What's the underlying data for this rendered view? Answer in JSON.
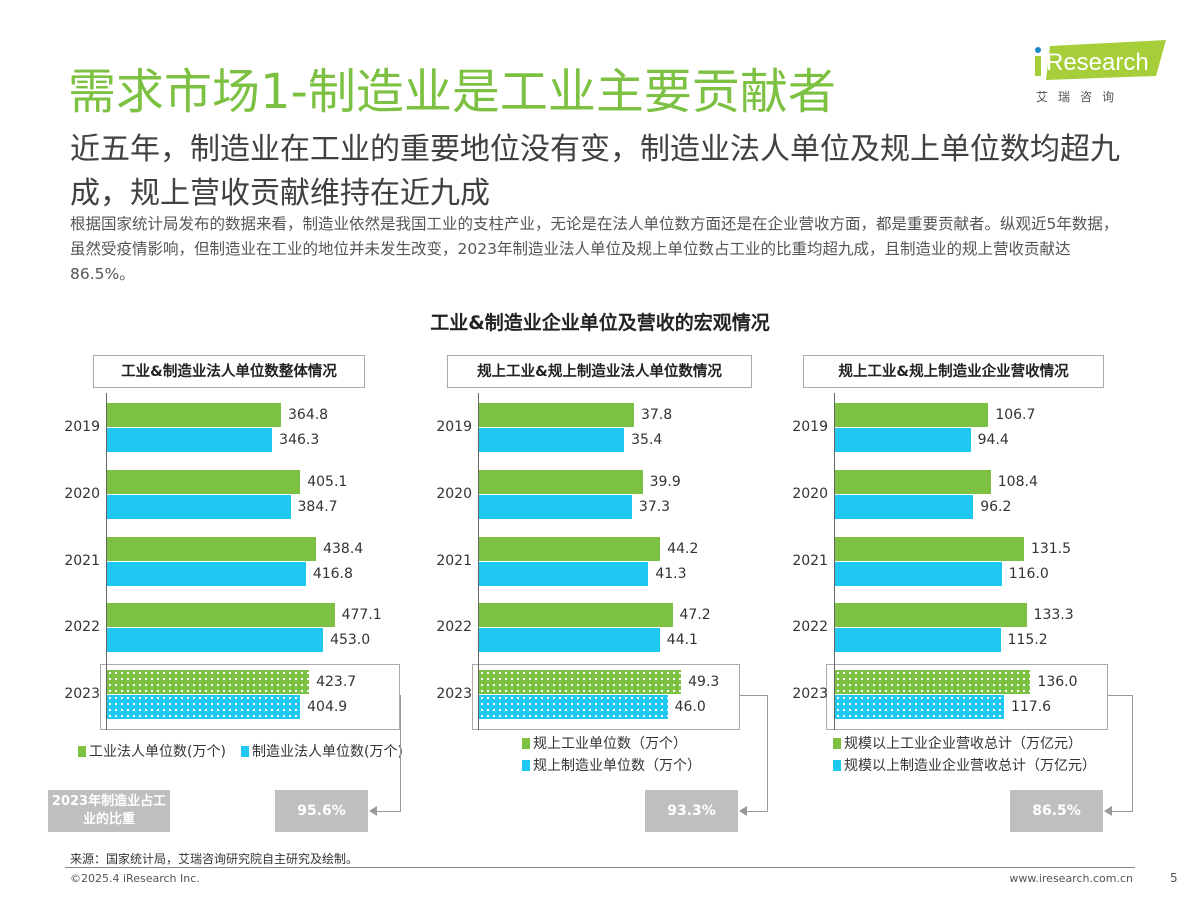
{
  "header": {
    "title": "需求市场1-制造业是工业主要贡献者",
    "subtitle": "近五年，制造业在工业的重要地位没有变，制造业法人单位及规上单位数均超九成，规上营收贡献维持在近九成",
    "description": "根据国家统计局发布的数据来看，制造业依然是我国工业的支柱产业，无论是在法人单位数方面还是在企业营收方面，都是重要贡献者。纵观近5年数据，虽然受疫情影响，但制造业在工业的地位并未发生改变，2023年制造业法人单位及规上单位数占工业的比重均超九成，且制造业的规上营收贡献达86.5%。",
    "logo": {
      "brand": "iResearch",
      "cn": "艾 瑞 咨 询",
      "color": "#a6ce39"
    }
  },
  "colors": {
    "green": "#7dc143",
    "blue": "#1ec8f0",
    "title_green": "#7dc143",
    "box_gray": "#bfbfbf"
  },
  "share_label": "2023年制造业占工业的比重",
  "chart_data": [
    {
      "type": "bar",
      "orientation": "horizontal",
      "title": "工业&制造业法人单位数整体情况",
      "categories": [
        "2019",
        "2020",
        "2021",
        "2022",
        "2023"
      ],
      "series": [
        {
          "name": "工业法人单位数(万个)",
          "values": [
            364.8,
            405.1,
            438.4,
            477.1,
            423.7
          ]
        },
        {
          "name": "制造业法人单位数(万个)",
          "values": [
            346.3,
            384.7,
            416.8,
            453.0,
            404.9
          ]
        }
      ],
      "value_labels": [
        [
          "364.8",
          "405.1",
          "438.4",
          "477.1",
          "423.7"
        ],
        [
          "346.3",
          "384.7",
          "416.8",
          "453.0",
          "404.9"
        ]
      ],
      "highlight": "2023",
      "share": "95.6%"
    },
    {
      "type": "bar",
      "orientation": "horizontal",
      "title": "规上工业&规上制造业法人单位数情况",
      "categories": [
        "2019",
        "2020",
        "2021",
        "2022",
        "2023"
      ],
      "series": [
        {
          "name": "规上工业单位数（万个）",
          "values": [
            37.8,
            39.9,
            44.2,
            47.2,
            49.3
          ]
        },
        {
          "name": "规上制造业单位数（万个）",
          "values": [
            35.4,
            37.3,
            41.3,
            44.1,
            46.0
          ]
        }
      ],
      "value_labels": [
        [
          "37.8",
          "39.9",
          "44.2",
          "47.2",
          "49.3"
        ],
        [
          "35.4",
          "37.3",
          "41.3",
          "44.1",
          "46.0"
        ]
      ],
      "highlight": "2023",
      "share": "93.3%"
    },
    {
      "type": "bar",
      "orientation": "horizontal",
      "title": "规上工业&规上制造业企业营收情况",
      "categories": [
        "2019",
        "2020",
        "2021",
        "2022",
        "2023"
      ],
      "series": [
        {
          "name": "规模以上工业企业营收总计（万亿元）",
          "values": [
            106.7,
            108.4,
            131.5,
            133.3,
            136.0
          ]
        },
        {
          "name": "规模以上制造业企业营收总计（万亿元）",
          "values": [
            94.4,
            96.2,
            116.0,
            115.2,
            117.6
          ]
        }
      ],
      "value_labels": [
        [
          "106.7",
          "108.4",
          "131.5",
          "133.3",
          "136.0"
        ],
        [
          "94.4",
          "96.2",
          "116.0",
          "115.2",
          "117.6"
        ]
      ],
      "highlight": "2023",
      "share": "86.5%"
    }
  ],
  "overall_title": "工业&制造业企业单位及营收的宏观情况",
  "footer": {
    "source": "来源：国家统计局，艾瑞咨询研究院自主研究及绘制。",
    "copyright": "©2025.4 iResearch Inc.",
    "website": "www.iresearch.com.cn",
    "page": "5"
  }
}
